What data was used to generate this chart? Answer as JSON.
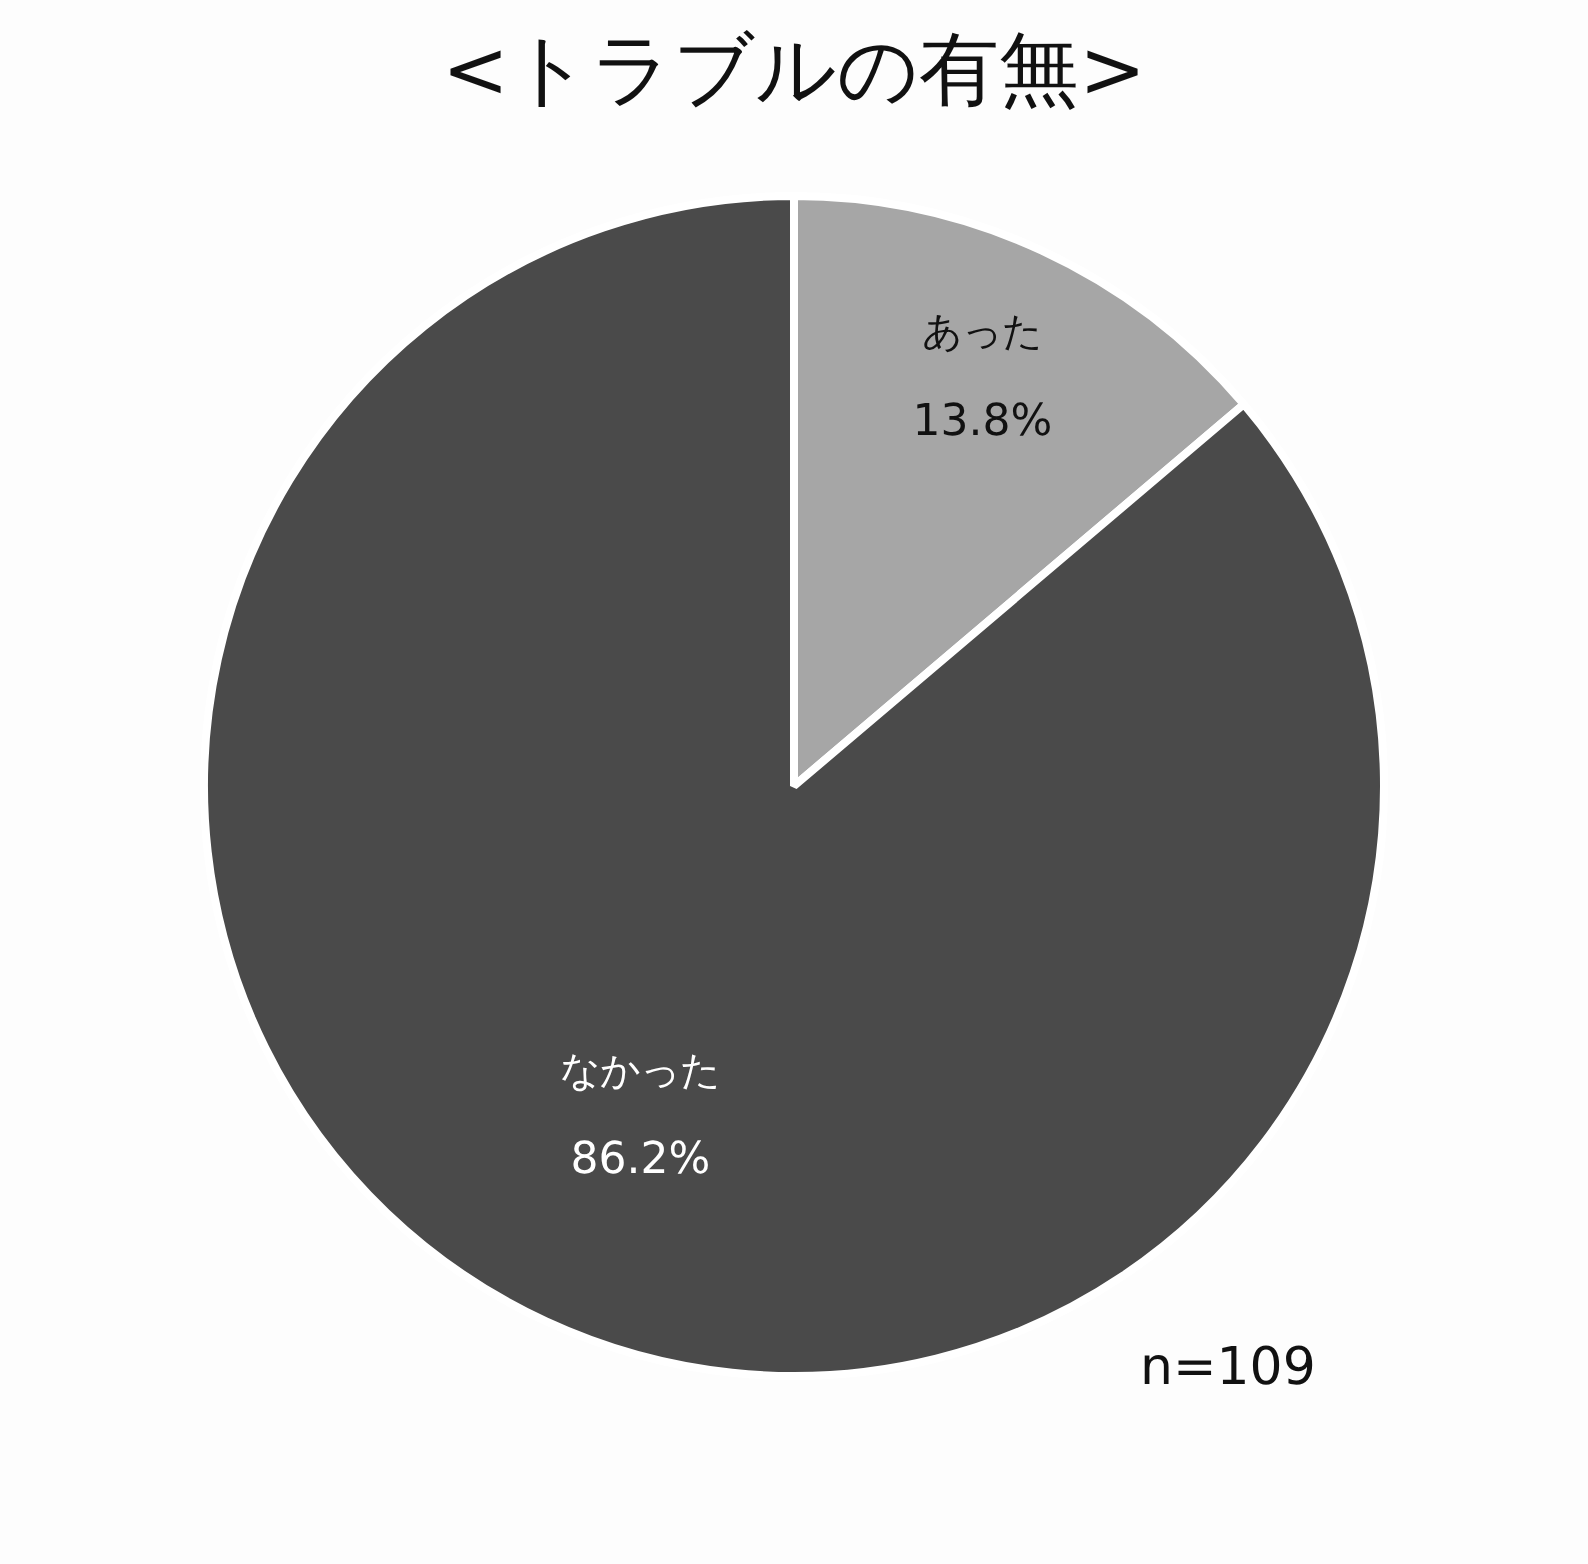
{
  "chart_data": {
    "type": "pie",
    "title": "<トラブルの有無>",
    "categories": [
      "あった",
      "なかった"
    ],
    "values": [
      13.8,
      86.2
    ],
    "value_labels": [
      "13.8%",
      "86.2%"
    ],
    "colors": [
      "#a6a6a6",
      "#4a4a4a"
    ],
    "legend": false,
    "annotations": [
      "n=109"
    ]
  }
}
